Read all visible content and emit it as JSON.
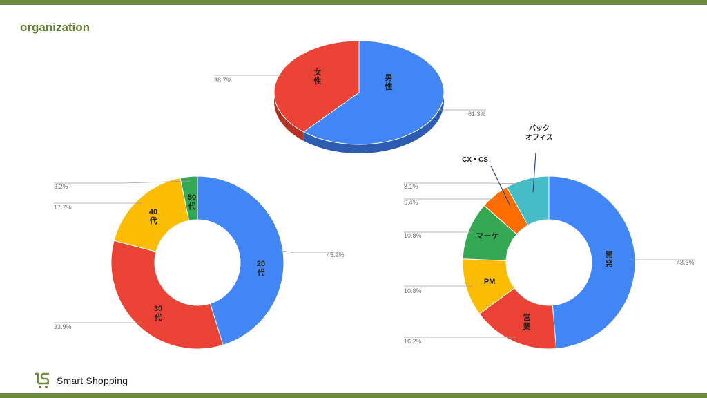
{
  "title": "organization",
  "brand": {
    "name": "Smart Shopping",
    "color": "#6c8b3f"
  },
  "colors": {
    "blue": "#4285f4",
    "red": "#ea4335",
    "yellow": "#fbbc04",
    "green": "#34a853",
    "orange": "#ff6d01",
    "teal": "#46bdc6",
    "gender_red_side": "#b33024",
    "gender_blue_side": "#2e5cb2"
  },
  "chart_data": [
    {
      "type": "pie",
      "style": "3d",
      "categories": [
        "男性",
        "女性"
      ],
      "values": [
        61.3,
        38.7
      ],
      "data_labels": [
        "61.3%",
        "38.7%"
      ],
      "colors": [
        "#4285f4",
        "#ea4335"
      ]
    },
    {
      "type": "pie",
      "style": "donut",
      "categories": [
        "20代",
        "30代",
        "40代",
        "50代"
      ],
      "values": [
        45.2,
        33.9,
        17.7,
        3.2
      ],
      "data_labels": [
        "45.2%",
        "33.9%",
        "17.7%",
        "3.2%"
      ],
      "colors": [
        "#4285f4",
        "#ea4335",
        "#fbbc04",
        "#34a853"
      ]
    },
    {
      "type": "pie",
      "style": "donut",
      "categories": [
        "開発",
        "営業",
        "PM",
        "マーケ",
        "CX・CS",
        "バックオフィス"
      ],
      "values": [
        48.6,
        16.2,
        10.8,
        10.8,
        5.4,
        8.1
      ],
      "data_labels": [
        "48.6%",
        "16.2%",
        "10.8%",
        "10.8%",
        "5.4%",
        "8.1%"
      ],
      "colors": [
        "#4285f4",
        "#ea4335",
        "#fbbc04",
        "#34a853",
        "#ff6d01",
        "#46bdc6"
      ]
    }
  ]
}
